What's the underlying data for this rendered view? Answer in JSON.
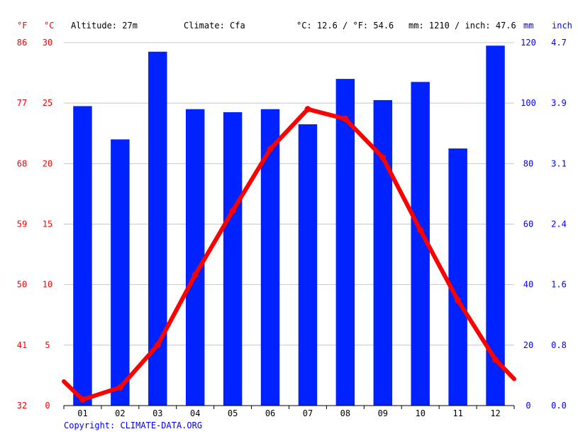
{
  "header": {
    "unit_f": "°F",
    "unit_c": "°C",
    "altitude": "Altitude: 27m",
    "climate": "Climate: Cfa",
    "temp_avg": "°C: 12.6 / °F: 54.6",
    "precip_total": "mm: 1210 / inch: 47.6",
    "unit_mm": "mm",
    "unit_inch": "inch"
  },
  "footer": {
    "copyright": "Copyright: CLIMATE-DATA.ORG"
  },
  "colors": {
    "temperature": "#ff0000",
    "precipitation": "#0022ff",
    "axis_left": "#ff0000",
    "axis_right": "#0000ff"
  },
  "chart_data": {
    "type": "bar",
    "categories": [
      "01",
      "02",
      "03",
      "04",
      "05",
      "06",
      "07",
      "08",
      "09",
      "10",
      "11",
      "12"
    ],
    "series": [
      {
        "values": [
          99,
          88,
          117,
          98,
          97,
          98,
          93,
          108,
          101,
          107,
          85,
          119
        ],
        "unit": "mm",
        "type": "bar"
      },
      {
        "values": [
          0.5,
          1.5,
          5.0,
          10.8,
          16.1,
          21.2,
          24.5,
          23.7,
          20.5,
          14.5,
          8.7,
          3.8
        ],
        "unit": "°C",
        "type": "line"
      }
    ],
    "line_start_value": 2.0,
    "line_end_value": 2.2,
    "temp_ylim_c": [
      0,
      30
    ],
    "precip_ylim_mm": [
      0,
      120
    ],
    "yticks_c": [
      "0",
      "5",
      "10",
      "15",
      "20",
      "25",
      "30"
    ],
    "yticks_f": [
      "32",
      "41",
      "50",
      "59",
      "68",
      "77",
      "86"
    ],
    "yticks_mm": [
      "0",
      "20",
      "40",
      "60",
      "80",
      "100",
      "120"
    ],
    "yticks_inch": [
      "0.0",
      "0.8",
      "1.6",
      "2.4",
      "3.1",
      "3.9",
      "4.7"
    ],
    "grid": true
  }
}
